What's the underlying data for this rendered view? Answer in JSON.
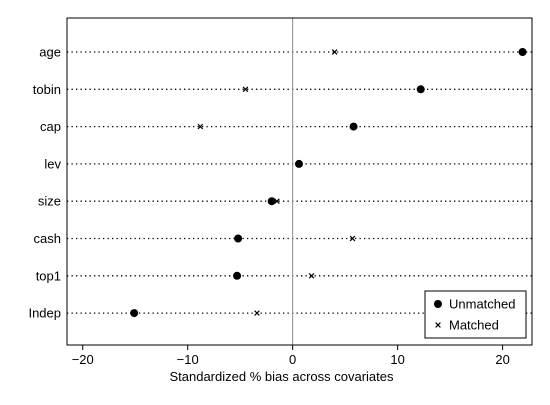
{
  "chart_data": {
    "type": "scatter",
    "title": "",
    "xlabel": "Standardized % bias across covariates",
    "ylabel": "",
    "xlim": [
      -21.5,
      22.8
    ],
    "xticks": [
      -20,
      -10,
      0,
      10,
      20
    ],
    "xtick_labels": [
      "−20",
      "−10",
      "0",
      "10",
      "20"
    ],
    "categories": [
      "age",
      "tobin",
      "cap",
      "lev",
      "size",
      "cash",
      "top1",
      "Indep"
    ],
    "series": [
      {
        "name": "Unmatched",
        "marker": "circle",
        "values": [
          21.9,
          12.2,
          5.8,
          0.6,
          -2.0,
          -5.2,
          -5.3,
          -15.1
        ]
      },
      {
        "name": "Matched",
        "marker": "x",
        "values": [
          4.0,
          -4.5,
          -8.8,
          0.6,
          -1.5,
          5.7,
          1.8,
          -3.4
        ]
      }
    ],
    "reference_line": 0,
    "gridlines": "dotted horizontal per category",
    "legend_position": "bottom-right",
    "colors": {
      "marker": "#000000",
      "reference": "#8c8c8c",
      "frame": "#000000"
    }
  }
}
